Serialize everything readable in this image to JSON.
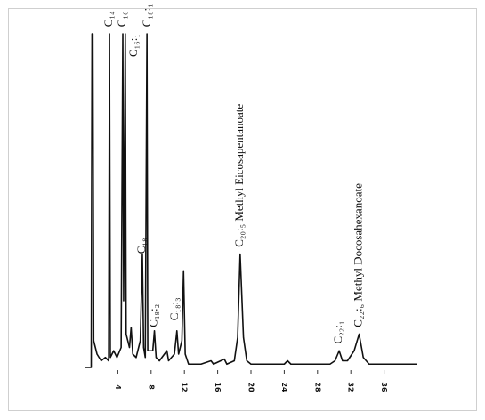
{
  "chart_data": {
    "type": "line",
    "x": [
      0,
      0.8,
      0.9,
      1.0,
      1.1,
      1.5,
      2.0,
      2.5,
      2.9,
      3.0,
      3.1,
      3.5,
      3.9,
      4.4,
      4.6,
      4.7,
      4.9,
      5.0,
      5.4,
      5.6,
      5.8,
      6.2,
      6.7,
      6.95,
      7.1,
      7.3,
      7.5,
      7.6,
      8.2,
      8.4,
      8.6,
      9.0,
      9.9,
      10.1,
      10.8,
      11.1,
      11.3,
      11.7,
      11.9,
      12.1,
      12.5,
      14,
      15.2,
      15.5,
      16.8,
      17.1,
      18,
      18.4,
      18.7,
      19.1,
      19.5,
      20,
      24,
      24.4,
      24.8,
      29.5,
      30.1,
      30.6,
      31.0,
      31.6,
      32.4,
      33.0,
      33.5,
      34.2,
      40
    ],
    "values": [
      0,
      0,
      100,
      100,
      8,
      4,
      2,
      3,
      2,
      100,
      3,
      5,
      3,
      6,
      100,
      20,
      100,
      10,
      6,
      12,
      4,
      3,
      8,
      34,
      6,
      3,
      100,
      5,
      5,
      11,
      3,
      2,
      5,
      2,
      4,
      11,
      4,
      8,
      29,
      4,
      1,
      1,
      2,
      1,
      2.5,
      1,
      2,
      9,
      34,
      9,
      2,
      1,
      1,
      2,
      1,
      1,
      2,
      5,
      2,
      2,
      5,
      10,
      3,
      1,
      1
    ],
    "color": "#111111",
    "xlim": [
      0,
      40
    ],
    "ylim": [
      0,
      100
    ],
    "xticks": [
      4,
      8,
      12,
      16,
      20,
      24,
      28,
      32,
      36
    ],
    "annotations": [
      {
        "text": "C₁₄",
        "x": 3.0,
        "y": 101
      },
      {
        "text": "C₁₆",
        "x": 4.6,
        "y": 101
      },
      {
        "text": "C₁₆:₁",
        "x": 6.0,
        "y": 92
      },
      {
        "text": "C₁₈:₁",
        "x": 7.6,
        "y": 101
      },
      {
        "text": "C₁₈",
        "x": 6.95,
        "y": 33
      },
      {
        "text": "C₁₈:₂",
        "x": 8.4,
        "y": 11
      },
      {
        "text": "C₁₈:₃",
        "x": 10.9,
        "y": 13
      },
      {
        "text": "C₂₀:₅ Methyl Eicosapentanoate",
        "x": 18.7,
        "y": 35
      },
      {
        "text": "C₂₂:₁",
        "x": 30.6,
        "y": 6
      },
      {
        "text": "C₂₂:₆ Methyl Docosahexanoate",
        "x": 33.0,
        "y": 11
      }
    ]
  }
}
